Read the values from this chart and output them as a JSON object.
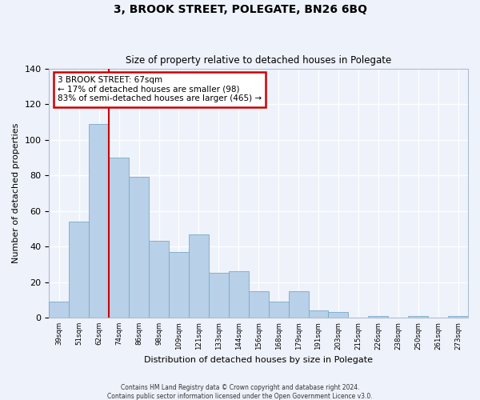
{
  "title": "3, BROOK STREET, POLEGATE, BN26 6BQ",
  "subtitle": "Size of property relative to detached houses in Polegate",
  "xlabel": "Distribution of detached houses by size in Polegate",
  "ylabel": "Number of detached properties",
  "categories": [
    "39sqm",
    "51sqm",
    "62sqm",
    "74sqm",
    "86sqm",
    "98sqm",
    "109sqm",
    "121sqm",
    "133sqm",
    "144sqm",
    "156sqm",
    "168sqm",
    "179sqm",
    "191sqm",
    "203sqm",
    "215sqm",
    "226sqm",
    "238sqm",
    "250sqm",
    "261sqm",
    "273sqm"
  ],
  "values": [
    9,
    54,
    109,
    90,
    79,
    43,
    37,
    47,
    25,
    26,
    15,
    9,
    15,
    4,
    3,
    0,
    1,
    0,
    1,
    0,
    1
  ],
  "bar_color": "#b8d0e8",
  "bar_edge_color": "#7aaac8",
  "background_color": "#eef2fb",
  "ylim": [
    0,
    140
  ],
  "yticks": [
    0,
    20,
    40,
    60,
    80,
    100,
    120,
    140
  ],
  "property_line_color": "#cc0000",
  "annotation_text": "3 BROOK STREET: 67sqm\n← 17% of detached houses are smaller (98)\n83% of semi-detached houses are larger (465) →",
  "annotation_box_facecolor": "#ffffff",
  "annotation_box_edgecolor": "#cc0000",
  "footer_line1": "Contains HM Land Registry data © Crown copyright and database right 2024.",
  "footer_line2": "Contains public sector information licensed under the Open Government Licence v3.0."
}
